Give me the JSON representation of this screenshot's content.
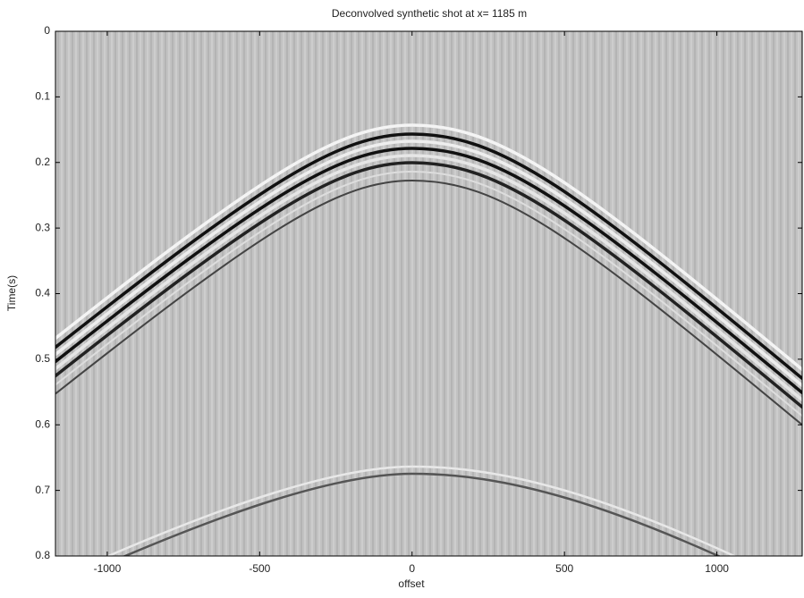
{
  "chart_data": {
    "type": "image",
    "title": "Deconvolved synthetic shot at x= 1185 m",
    "xlabel": "offset",
    "ylabel": "Time(s)",
    "xlim": [
      -1170,
      1280
    ],
    "xticks": [
      -1000,
      -500,
      0,
      500,
      1000
    ],
    "ylim": [
      0.8,
      0
    ],
    "yticks": [
      0,
      0.1,
      0.2,
      0.3,
      0.4,
      0.5,
      0.6,
      0.7,
      0.8
    ],
    "colormap": "gray"
  }
}
